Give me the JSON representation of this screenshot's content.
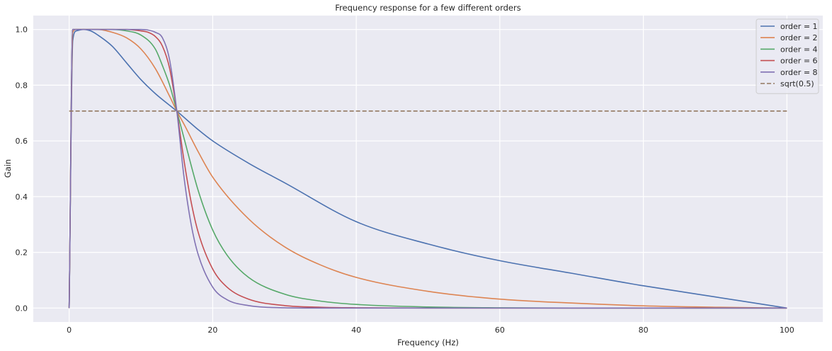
{
  "chart_data": {
    "type": "line",
    "title": "Frequency response for a few different orders",
    "xlabel": "Frequency (Hz)",
    "ylabel": "Gain",
    "xlim": [
      -5,
      105
    ],
    "ylim": [
      -0.05,
      1.05
    ],
    "xticks": [
      0,
      20,
      40,
      60,
      80,
      100
    ],
    "yticks": [
      0.0,
      0.2,
      0.4,
      0.6,
      0.8,
      1.0
    ],
    "xtick_labels": [
      "0",
      "20",
      "40",
      "60",
      "80",
      "100"
    ],
    "ytick_labels": [
      "0.0",
      "0.2",
      "0.4",
      "0.6",
      "0.8",
      "1.0"
    ],
    "grid": true,
    "background": "#eaeaf2",
    "legend_position": "top-right",
    "series": [
      {
        "name": "order = 1",
        "color": "#4c72b0",
        "dash": false,
        "x": [
          0,
          0.5,
          1,
          2,
          3,
          4,
          6,
          8,
          10,
          12,
          15,
          18,
          20,
          25,
          30,
          40,
          50,
          60,
          70,
          80,
          90,
          100
        ],
        "y": [
          0,
          0.96,
          0.995,
          1.0,
          0.995,
          0.98,
          0.94,
          0.88,
          0.82,
          0.77,
          0.707,
          0.64,
          0.6,
          0.52,
          0.45,
          0.31,
          0.23,
          0.17,
          0.125,
          0.08,
          0.04,
          0.0
        ]
      },
      {
        "name": "order = 2",
        "color": "#dd8452",
        "dash": false,
        "x": [
          0,
          0.5,
          1,
          2,
          4,
          6,
          8,
          10,
          12,
          14,
          15,
          16,
          18,
          20,
          25,
          30,
          35,
          40,
          50,
          60,
          70,
          80,
          90,
          100
        ],
        "y": [
          0,
          0.99,
          1.0,
          1.0,
          1.0,
          0.99,
          0.97,
          0.93,
          0.86,
          0.76,
          0.707,
          0.66,
          0.56,
          0.47,
          0.32,
          0.22,
          0.155,
          0.11,
          0.06,
          0.032,
          0.018,
          0.008,
          0.003,
          0.0
        ]
      },
      {
        "name": "order = 4",
        "color": "#55a868",
        "dash": false,
        "x": [
          0,
          0.5,
          1,
          2,
          4,
          6,
          8,
          10,
          12,
          13,
          14,
          15,
          16,
          18,
          20,
          22,
          25,
          30,
          35,
          40,
          50,
          60,
          70,
          80,
          100
        ],
        "y": [
          0,
          1.0,
          1.0,
          1.0,
          1.0,
          1.0,
          0.995,
          0.98,
          0.93,
          0.87,
          0.8,
          0.707,
          0.61,
          0.42,
          0.28,
          0.19,
          0.11,
          0.05,
          0.025,
          0.013,
          0.004,
          0.001,
          0.0,
          0.0,
          0.0
        ]
      },
      {
        "name": "order = 6",
        "color": "#c44e52",
        "dash": false,
        "x": [
          0,
          0.5,
          1,
          2,
          4,
          6,
          8,
          10,
          11,
          12,
          13,
          14,
          15,
          16,
          17,
          18,
          20,
          22,
          25,
          30,
          35,
          40,
          50,
          60,
          100
        ],
        "y": [
          0,
          1.0,
          1.0,
          1.0,
          1.0,
          1.0,
          1.0,
          0.995,
          0.99,
          0.975,
          0.94,
          0.86,
          0.707,
          0.53,
          0.38,
          0.27,
          0.14,
          0.075,
          0.032,
          0.009,
          0.003,
          0.001,
          0.0,
          0.0,
          0.0
        ]
      },
      {
        "name": "order = 8",
        "color": "#8172b3",
        "dash": false,
        "x": [
          0,
          0.5,
          1,
          2,
          4,
          6,
          8,
          10,
          11,
          12,
          13,
          14,
          15,
          16,
          17,
          18,
          20,
          22,
          25,
          30,
          35,
          40,
          60,
          100
        ],
        "y": [
          0,
          1.0,
          1.0,
          1.0,
          1.0,
          1.0,
          1.0,
          1.0,
          0.998,
          0.99,
          0.97,
          0.89,
          0.707,
          0.47,
          0.3,
          0.19,
          0.075,
          0.03,
          0.009,
          0.001,
          0.0,
          0.0,
          0.0,
          0.0
        ]
      },
      {
        "name": "sqrt(0.5)",
        "color": "#937860",
        "dash": true,
        "x": [
          0,
          100
        ],
        "y": [
          0.7071,
          0.7071
        ]
      }
    ]
  }
}
